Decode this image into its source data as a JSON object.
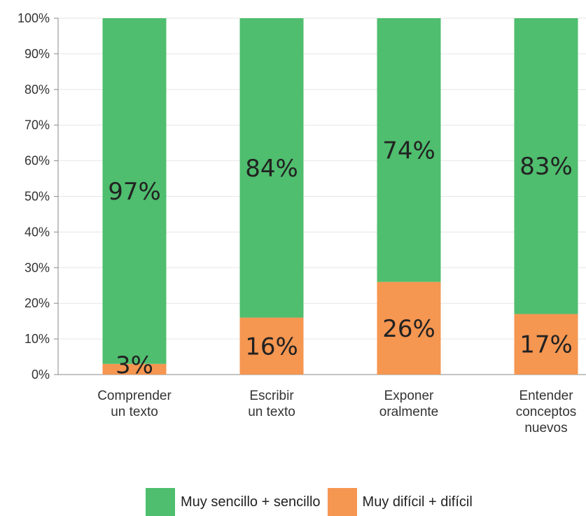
{
  "chart_data": {
    "type": "bar",
    "stacked": true,
    "categories": [
      [
        "Comprender",
        "un texto"
      ],
      [
        "Escribir",
        "un texto"
      ],
      [
        "Exponer",
        "oralmente"
      ],
      [
        "Entender",
        "conceptos",
        "nuevos"
      ]
    ],
    "series": [
      {
        "name": "Muy difícil + difícil",
        "color": "#f59651",
        "values": [
          3,
          16,
          26,
          17
        ],
        "labels": [
          "3%",
          "16%",
          "26%",
          "17%"
        ]
      },
      {
        "name": "Muy sencillo + sencillo",
        "color": "#4fbe6e",
        "values": [
          97,
          84,
          74,
          83
        ],
        "labels": [
          "97%",
          "84%",
          "74%",
          "83%"
        ]
      }
    ],
    "ylim": [
      0,
      100
    ],
    "yticks": [
      "0%",
      "10%",
      "20%",
      "30%",
      "40%",
      "50%",
      "60%",
      "70%",
      "80%",
      "90%",
      "100%"
    ],
    "grid": true,
    "legend_position": "bottom",
    "legend": [
      {
        "label": "Muy sencillo + sencillo",
        "color": "#4fbe6e"
      },
      {
        "label": "Muy difícil + difícil",
        "color": "#f59651"
      }
    ]
  }
}
